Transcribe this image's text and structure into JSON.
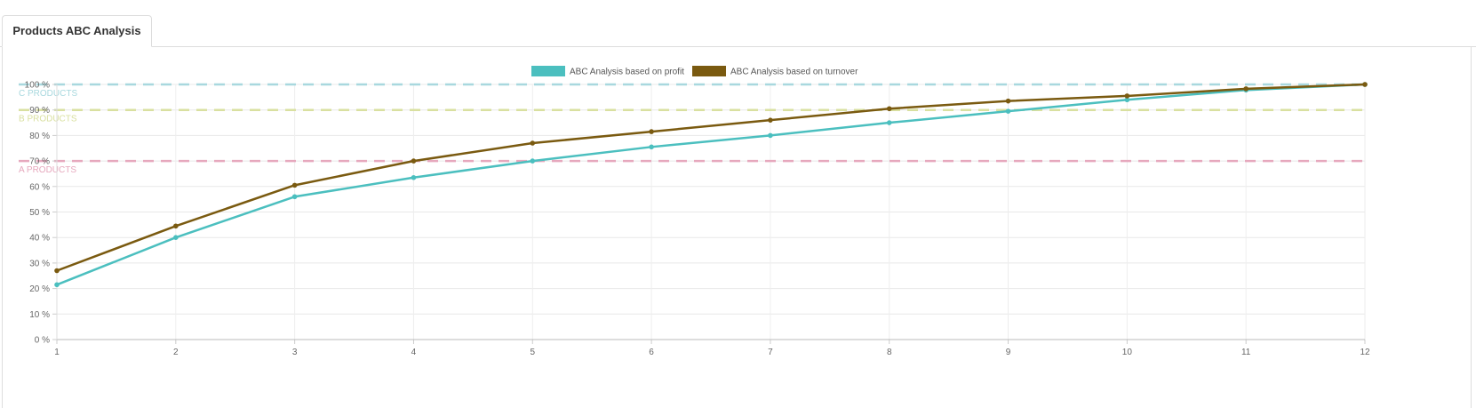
{
  "tabs": [
    {
      "label": "Products ABC Analysis",
      "active": true
    }
  ],
  "chart_data": {
    "type": "line",
    "categories": [
      "1",
      "2",
      "3",
      "4",
      "5",
      "6",
      "7",
      "8",
      "9",
      "10",
      "11",
      "12"
    ],
    "series": [
      {
        "name": "ABC Analysis based on profit",
        "color": "#4bbfbf",
        "values": [
          21.5,
          40,
          56,
          63.5,
          70,
          75.5,
          80,
          85,
          89.5,
          94,
          97.8,
          100
        ]
      },
      {
        "name": "ABC Analysis based on turnover",
        "color": "#7a5a10",
        "values": [
          27,
          44.5,
          60.5,
          70,
          77,
          81.5,
          86,
          90.5,
          93.5,
          95.5,
          98.3,
          100
        ]
      }
    ],
    "ylim": [
      0,
      100
    ],
    "yticks": [
      0,
      10,
      20,
      30,
      40,
      50,
      60,
      70,
      80,
      90,
      100
    ],
    "ytick_labels": [
      "0 %",
      "10 %",
      "20 %",
      "30 %",
      "40 %",
      "50 %",
      "60 %",
      "70 %",
      "80 %",
      "90 %",
      "100 %"
    ],
    "thresholds": [
      {
        "label": "C PRODUCTS",
        "value": 100,
        "color": "#a8d8de"
      },
      {
        "label": "B PRODUCTS",
        "value": 90,
        "color": "#d9e0a0"
      },
      {
        "label": "A PRODUCTS",
        "value": 70,
        "color": "#e6a8bd"
      }
    ],
    "grid": true,
    "legend_position": "top-center"
  }
}
